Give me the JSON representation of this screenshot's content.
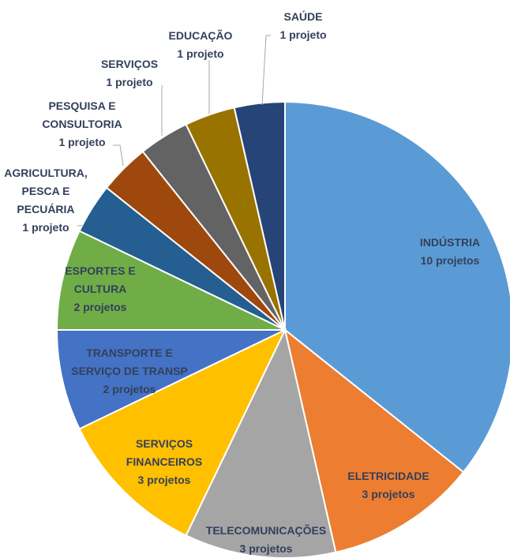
{
  "chart_data": {
    "type": "pie",
    "categories": [
      "INDÚSTRIA",
      "ELETRICIDADE",
      "TELECOMUNICAÇÕES",
      "SERVIÇOS\nFINANCEIROS",
      "TRANSPORTE E\nSERVIÇO DE TRANSP",
      "ESPORTES E\nCULTURA",
      "AGRICULTURA,\nPESCA E\nPECUÁRIA",
      "PESQUISA E\nCONSULTORIA",
      "SERVIÇOS",
      "EDUCAÇÃO",
      "SAÚDE"
    ],
    "values": [
      10,
      3,
      3,
      3,
      2,
      2,
      1,
      1,
      1,
      1,
      1
    ],
    "value_labels": [
      "10 projetos",
      "3 projetos",
      "3 projetos",
      "3 projetos",
      "2 projetos",
      "2 projetos",
      "1 projeto",
      "1 projeto",
      "1 projeto",
      "1 projeto",
      "1 projeto"
    ],
    "colors": [
      "#5b9bd5",
      "#ed7d31",
      "#a5a5a5",
      "#ffc000",
      "#4472c4",
      "#70ad47",
      "#255e91",
      "#9e480e",
      "#636363",
      "#997300",
      "#264478"
    ]
  }
}
